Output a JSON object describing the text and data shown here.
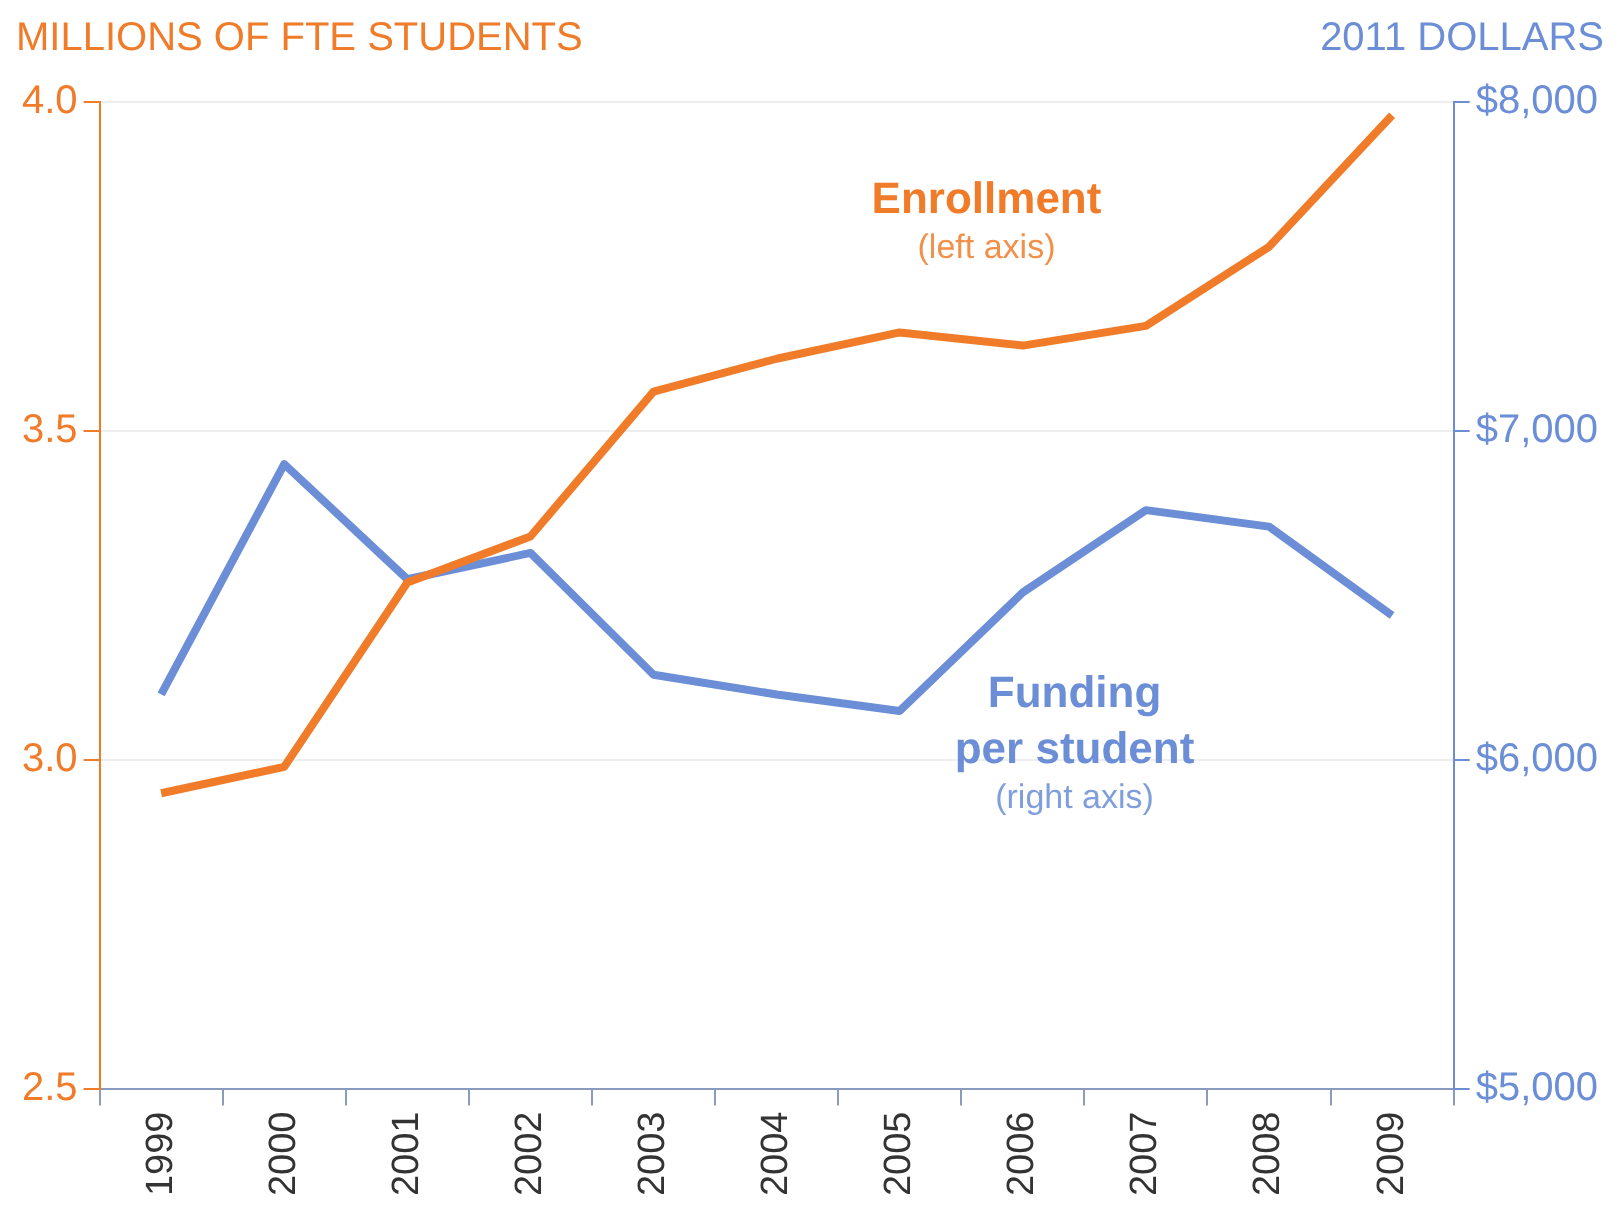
{
  "chart_data": {
    "type": "line",
    "ylabel": "MILLIONS OF FTE STUDENTS",
    "y2label": "2011 DOLLARS",
    "categories": [
      "1999",
      "2000",
      "2001",
      "2002",
      "2003",
      "2004",
      "2005",
      "2006",
      "2007",
      "2008",
      "2009"
    ],
    "series": [
      {
        "name": "Enrollment",
        "color": "#f07c2a",
        "values": [
          2.95,
          2.99,
          3.27,
          3.34,
          3.56,
          3.61,
          3.65,
          3.63,
          3.66,
          3.78,
          3.98
        ]
      },
      {
        "name": "Funding per student",
        "color": "#6b8ed6",
        "axis": "y2",
        "values": [
          6200,
          6900,
          6550,
          6630,
          6260,
          6200,
          6150,
          6510,
          6760,
          6710,
          6440
        ]
      }
    ],
    "ylim": [
      2.5,
      4.0
    ],
    "yticks": [
      {
        "value": 2.5,
        "label": "2.5"
      },
      {
        "value": 3.0,
        "label": "3.0"
      },
      {
        "value": 3.5,
        "label": "3.5"
      },
      {
        "value": 4.0,
        "label": "4.0"
      }
    ],
    "y2lim": [
      5000,
      8000
    ],
    "y2ticks": [
      {
        "value": 5000,
        "label": "$5,000"
      },
      {
        "value": 6000,
        "label": "$6,000"
      },
      {
        "value": 7000,
        "label": "$7,000"
      },
      {
        "value": 8000,
        "label": "$8,000"
      }
    ],
    "annotations": [
      "(left axis)",
      "(right axis)"
    ],
    "grid": "y",
    "legend": false,
    "marker": "none",
    "line_style": "solid"
  }
}
